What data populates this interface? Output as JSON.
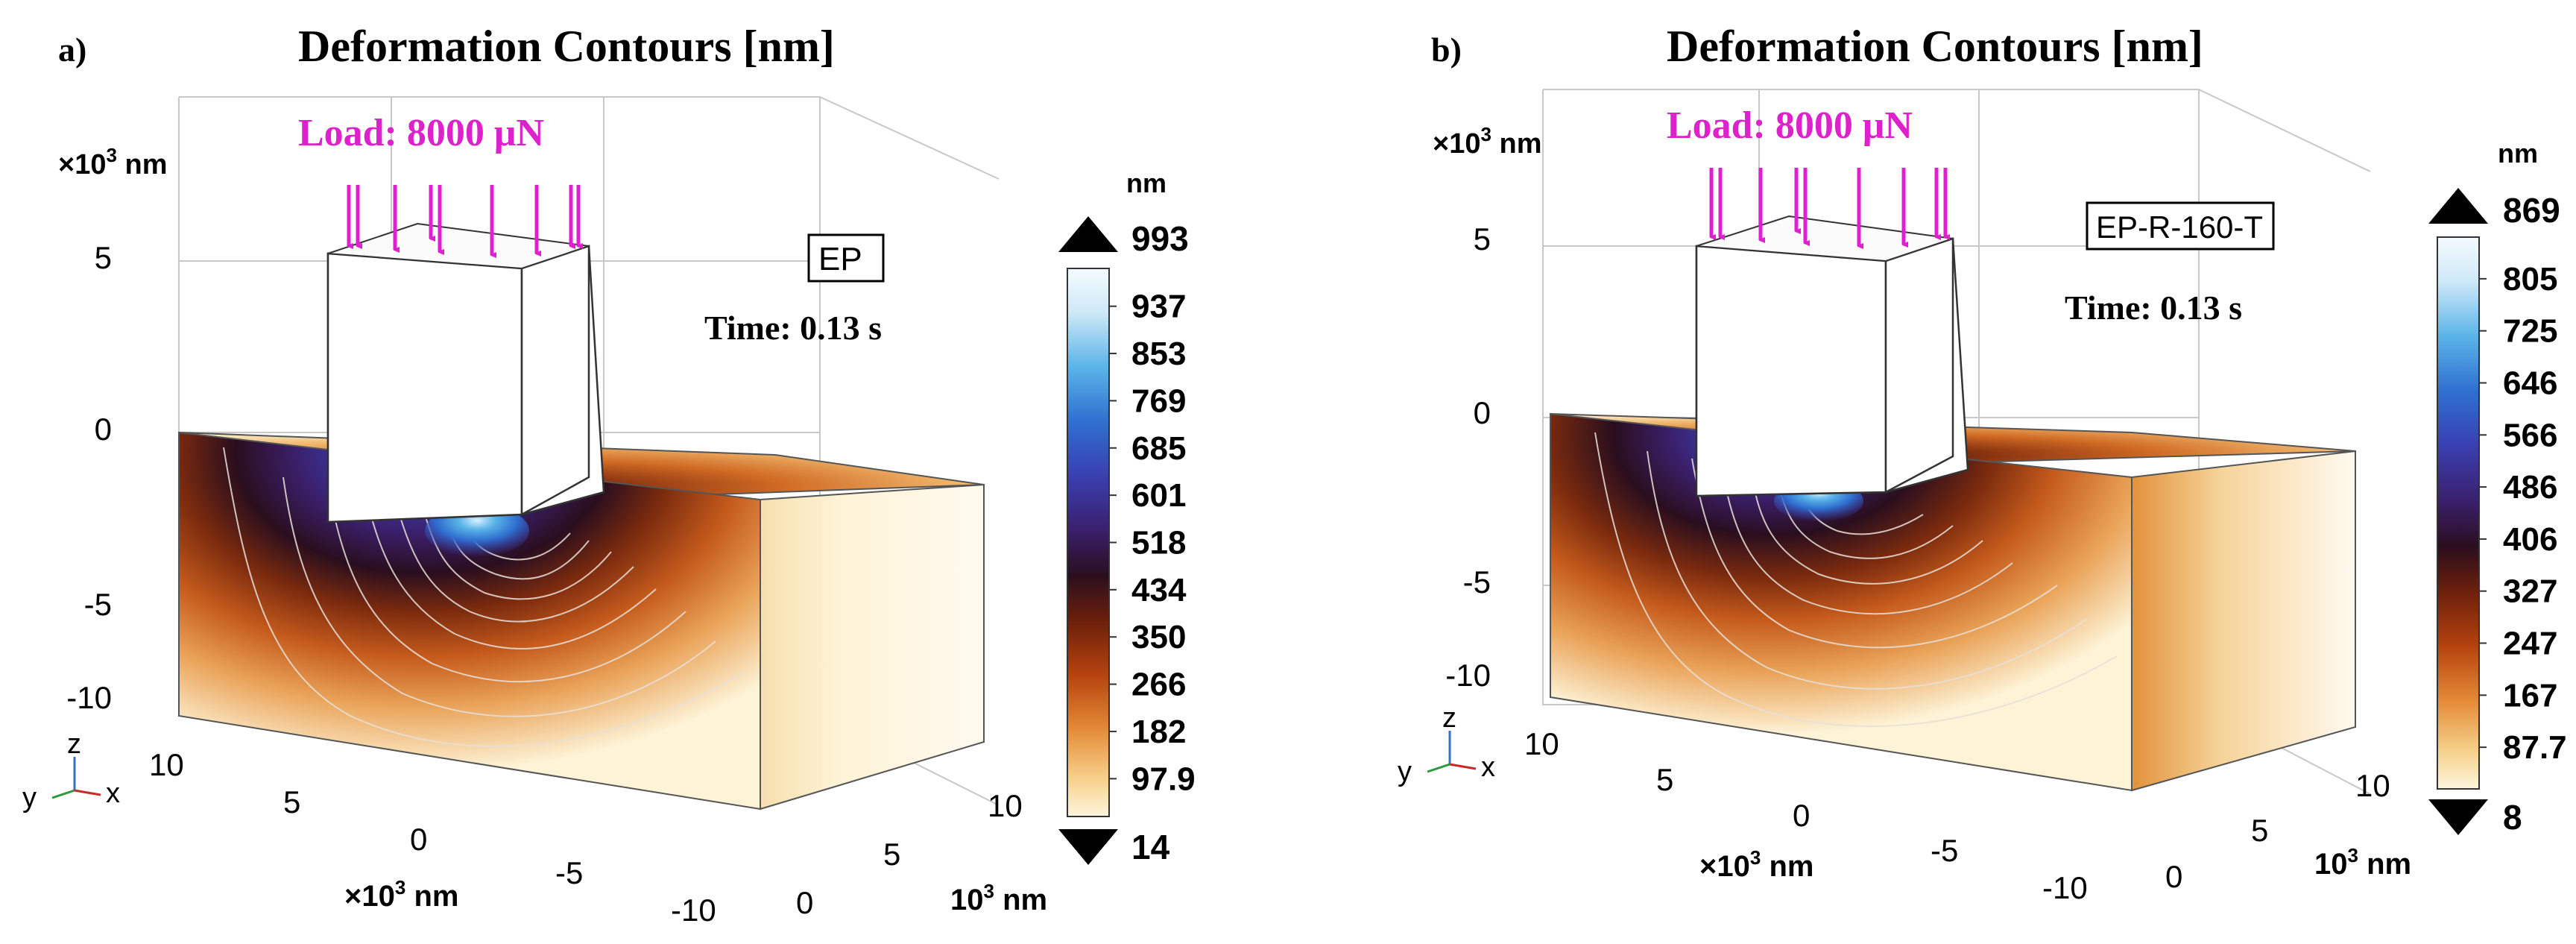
{
  "panels": [
    {
      "letter": "a)",
      "title": "Deformation Contours [nm]",
      "load": "Load: 8000 μN",
      "label": "EP",
      "time": "Time: 0.13 s",
      "z_unit": "×10",
      "z_unit_exp": "3",
      "z_unit_suffix": " nm",
      "z_ticks": [
        "5",
        "0",
        "-5",
        "-10"
      ],
      "x_ticks": [
        "10",
        "5",
        "0",
        "-5",
        "-10"
      ],
      "x_unit": "×10",
      "x_unit_exp": "3",
      "x_unit_suffix": " nm",
      "y_ticks": [
        "0",
        "5",
        "10"
      ],
      "y_unit": "10",
      "y_unit_exp": "3",
      "y_unit_suffix": " nm",
      "colorbar": {
        "unit": "nm",
        "max": "993",
        "min": "14",
        "ticks": [
          "937",
          "853",
          "769",
          "685",
          "601",
          "518",
          "434",
          "350",
          "266",
          "182",
          "97.9"
        ]
      },
      "axis_triad": {
        "z": "z",
        "y": "y",
        "x": "x"
      }
    },
    {
      "letter": "b)",
      "title": "Deformation Contours [nm]",
      "load": "Load: 8000 μN",
      "label": "EP-R-160-T",
      "time": "Time: 0.13 s",
      "z_unit": "×10",
      "z_unit_exp": "3",
      "z_unit_suffix": " nm",
      "z_ticks": [
        "5",
        "0",
        "-5",
        "-10"
      ],
      "x_ticks": [
        "10",
        "5",
        "0",
        "-5",
        "-10"
      ],
      "x_unit": "×10",
      "x_unit_exp": "3",
      "x_unit_suffix": " nm",
      "y_ticks": [
        "0",
        "5",
        "10"
      ],
      "y_unit": "10",
      "y_unit_exp": "3",
      "y_unit_suffix": " nm",
      "colorbar": {
        "unit": "nm",
        "max": "869",
        "min": "8",
        "ticks": [
          "805",
          "725",
          "646",
          "566",
          "486",
          "406",
          "327",
          "247",
          "167",
          "87.7"
        ]
      },
      "axis_triad": {
        "z": "z",
        "y": "y",
        "x": "x"
      }
    }
  ],
  "colors": {
    "arrow": "#e020d0",
    "load_text": "#dd22cc",
    "contour_line": "#e8e0d8"
  }
}
